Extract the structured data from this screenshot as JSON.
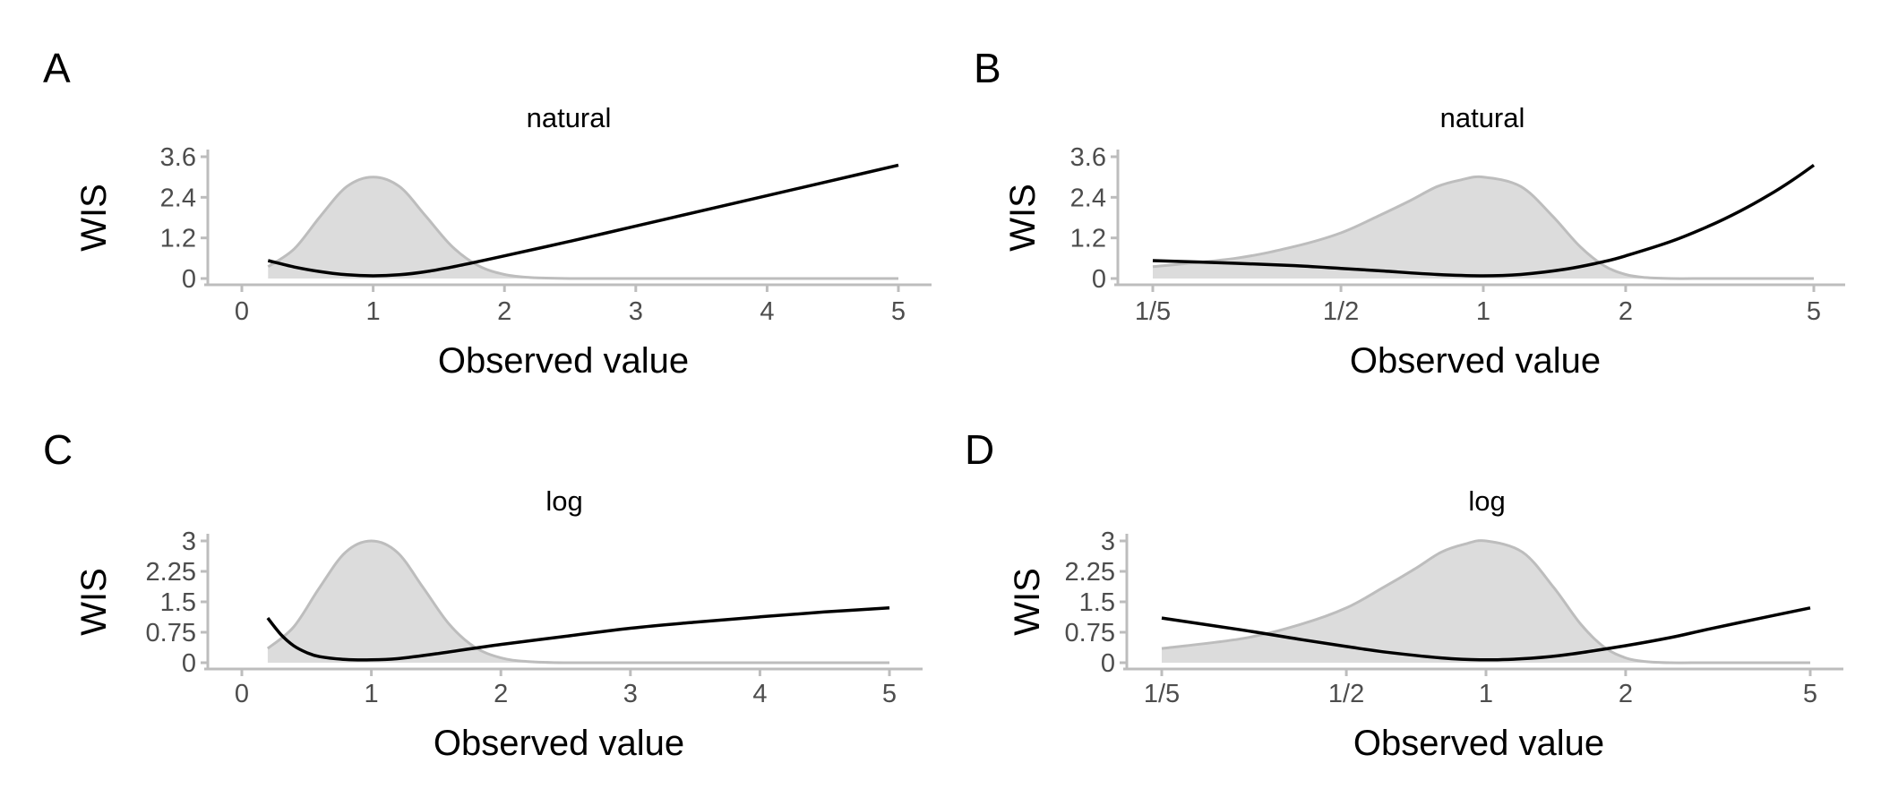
{
  "colors": {
    "density_fill": "#dcdcdc",
    "density_line": "#bdbdbd",
    "wis_line": "#000000",
    "axis": "#bdbdbd",
    "tick_text": "#4d4d4d",
    "label_text": "#000000"
  },
  "chart_data": [
    {
      "type": "line",
      "panel_label": "A",
      "title": "natural",
      "xlabel": "Observed value",
      "ylabel": "WIS",
      "xscale": "linear",
      "xlim": [
        0,
        5
      ],
      "ylim": [
        0,
        3.6
      ],
      "xticks": [
        0,
        1,
        2,
        3,
        4,
        5
      ],
      "xtick_labels": [
        "0",
        "1",
        "2",
        "3",
        "4",
        "5"
      ],
      "yticks": [
        0,
        1.2,
        2.4,
        3.6
      ],
      "ytick_labels": [
        "0",
        "1.2",
        "2.4",
        "3.6"
      ],
      "grid": false,
      "series": [
        {
          "kind": "area",
          "x": [
            0.2,
            0.4,
            0.6,
            0.8,
            1.0,
            1.2,
            1.4,
            1.6,
            1.8,
            2.0,
            2.2,
            2.5,
            3.0,
            4.0,
            5.0
          ],
          "values": [
            0.35,
            0.88,
            1.85,
            2.72,
            3.0,
            2.72,
            1.85,
            0.95,
            0.38,
            0.12,
            0.03,
            0.0,
            0.0,
            0.0,
            0.0
          ]
        },
        {
          "kind": "line",
          "x": [
            0.2,
            0.4,
            0.6,
            0.8,
            1.0,
            1.2,
            1.4,
            1.6,
            1.8,
            2.0,
            2.5,
            3.0,
            3.5,
            4.0,
            4.5,
            5.0
          ],
          "values": [
            0.53,
            0.34,
            0.2,
            0.11,
            0.08,
            0.11,
            0.2,
            0.34,
            0.5,
            0.67,
            1.1,
            1.55,
            2.0,
            2.45,
            2.9,
            3.35
          ]
        }
      ]
    },
    {
      "type": "line",
      "panel_label": "B",
      "title": "natural",
      "xlabel": "Observed value",
      "ylabel": "WIS",
      "xscale": "log",
      "xlim": [
        0.2,
        5
      ],
      "ylim": [
        0,
        3.6
      ],
      "xticks": [
        0.2,
        0.5,
        1,
        2,
        5
      ],
      "xtick_labels": [
        "1/5",
        "1/2",
        "1",
        "2",
        "5"
      ],
      "yticks": [
        0,
        1.2,
        2.4,
        3.6
      ],
      "ytick_labels": [
        "0",
        "1.2",
        "2.4",
        "3.6"
      ],
      "grid": false,
      "series": [
        {
          "kind": "area",
          "x": [
            0.2,
            0.3,
            0.4,
            0.5,
            0.6,
            0.7,
            0.8,
            0.9,
            1.0,
            1.2,
            1.4,
            1.6,
            1.8,
            2.0,
            2.2,
            2.5,
            3.0,
            4.0,
            5.0
          ],
          "values": [
            0.35,
            0.6,
            0.95,
            1.35,
            1.85,
            2.3,
            2.72,
            2.92,
            3.0,
            2.72,
            1.85,
            0.95,
            0.38,
            0.12,
            0.03,
            0.0,
            0.0,
            0.0,
            0.0
          ]
        },
        {
          "kind": "line",
          "x": [
            0.2,
            0.3,
            0.4,
            0.5,
            0.6,
            0.8,
            1.0,
            1.2,
            1.5,
            1.8,
            2.0,
            2.5,
            3.0,
            3.5,
            4.0,
            4.5,
            5.0
          ],
          "values": [
            0.53,
            0.45,
            0.38,
            0.3,
            0.23,
            0.12,
            0.08,
            0.12,
            0.28,
            0.5,
            0.67,
            1.1,
            1.55,
            2.0,
            2.45,
            2.9,
            3.35
          ]
        }
      ]
    },
    {
      "type": "line",
      "panel_label": "C",
      "title": "log",
      "xlabel": "Observed value",
      "ylabel": "WIS",
      "xscale": "linear",
      "xlim": [
        0,
        5
      ],
      "ylim": [
        0,
        3
      ],
      "xticks": [
        0,
        1,
        2,
        3,
        4,
        5
      ],
      "xtick_labels": [
        "0",
        "1",
        "2",
        "3",
        "4",
        "5"
      ],
      "yticks": [
        0,
        0.75,
        1.5,
        2.25,
        3
      ],
      "ytick_labels": [
        "0",
        "0.75",
        "1.5",
        "2.25",
        "3"
      ],
      "grid": false,
      "series": [
        {
          "kind": "area",
          "x": [
            0.2,
            0.4,
            0.6,
            0.8,
            1.0,
            1.2,
            1.4,
            1.6,
            1.8,
            2.0,
            2.2,
            2.5,
            3.0,
            4.0,
            5.0
          ],
          "values": [
            0.35,
            0.88,
            1.85,
            2.72,
            3.0,
            2.72,
            1.85,
            0.95,
            0.38,
            0.12,
            0.03,
            0.0,
            0.0,
            0.0,
            0.0
          ]
        },
        {
          "kind": "line",
          "x": [
            0.2,
            0.3,
            0.4,
            0.5,
            0.6,
            0.8,
            1.0,
            1.2,
            1.5,
            2.0,
            2.5,
            3.0,
            3.5,
            4.0,
            4.5,
            5.0
          ],
          "values": [
            1.1,
            0.7,
            0.42,
            0.25,
            0.15,
            0.08,
            0.07,
            0.1,
            0.22,
            0.45,
            0.65,
            0.85,
            1.0,
            1.13,
            1.25,
            1.35
          ]
        }
      ]
    },
    {
      "type": "line",
      "panel_label": "D",
      "title": "log",
      "xlabel": "Observed value",
      "ylabel": "WIS",
      "xscale": "log",
      "xlim": [
        0.2,
        5
      ],
      "ylim": [
        0,
        3
      ],
      "xticks": [
        0.2,
        0.5,
        1,
        2,
        5
      ],
      "xtick_labels": [
        "1/5",
        "1/2",
        "1",
        "2",
        "5"
      ],
      "yticks": [
        0,
        0.75,
        1.5,
        2.25,
        3
      ],
      "ytick_labels": [
        "0",
        "0.75",
        "1.5",
        "2.25",
        "3"
      ],
      "grid": false,
      "series": [
        {
          "kind": "area",
          "x": [
            0.2,
            0.3,
            0.4,
            0.5,
            0.6,
            0.7,
            0.8,
            0.9,
            1.0,
            1.2,
            1.4,
            1.6,
            1.8,
            2.0,
            2.2,
            2.5,
            3.0,
            4.0,
            5.0
          ],
          "values": [
            0.35,
            0.6,
            0.95,
            1.35,
            1.85,
            2.3,
            2.72,
            2.92,
            3.0,
            2.72,
            1.85,
            0.95,
            0.38,
            0.12,
            0.03,
            0.0,
            0.0,
            0.0,
            0.0
          ]
        },
        {
          "kind": "line",
          "x": [
            0.2,
            0.3,
            0.4,
            0.5,
            0.6,
            0.8,
            1.0,
            1.25,
            1.5,
            2.0,
            2.5,
            3.0,
            4.0,
            5.0
          ],
          "values": [
            1.1,
            0.8,
            0.57,
            0.4,
            0.27,
            0.12,
            0.07,
            0.11,
            0.2,
            0.42,
            0.62,
            0.82,
            1.12,
            1.35
          ]
        }
      ]
    }
  ]
}
